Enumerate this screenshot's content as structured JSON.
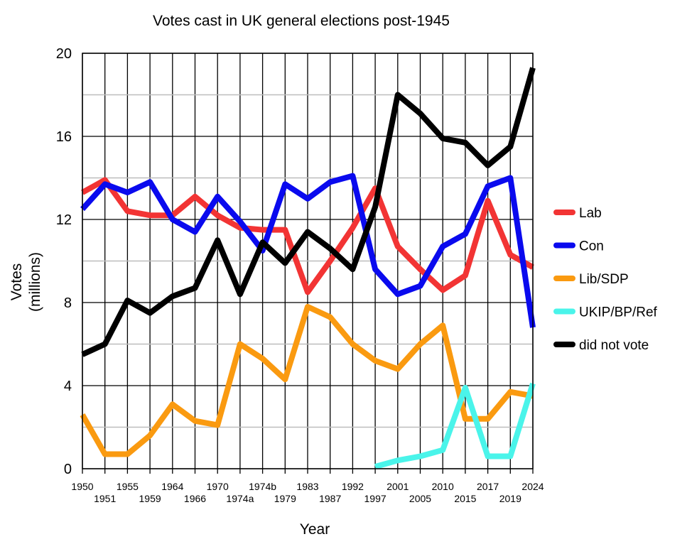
{
  "chart_data": {
    "type": "line",
    "title": "Votes cast in UK general elections post-1945",
    "xlabel": "Year",
    "ylabel": "Votes",
    "ylabel_units": "(millions)",
    "ylim": [
      0,
      20
    ],
    "yticks": [
      0,
      4,
      8,
      12,
      16,
      20
    ],
    "grid": true,
    "legend_position": "right",
    "categories": [
      "1950",
      "1951",
      "1955",
      "1959",
      "1964",
      "1966",
      "1970",
      "1974a",
      "1974b",
      "1979",
      "1983",
      "1987",
      "1992",
      "1997",
      "2001",
      "2005",
      "2010",
      "2015",
      "2017",
      "2019",
      "2024"
    ],
    "series": [
      {
        "name": "Lab",
        "color": "#f23434",
        "values": [
          13.3,
          13.9,
          12.4,
          12.2,
          12.2,
          13.1,
          12.2,
          11.6,
          11.5,
          11.5,
          8.5,
          10.0,
          11.6,
          13.5,
          10.7,
          9.6,
          8.6,
          9.3,
          12.9,
          10.3,
          9.7
        ]
      },
      {
        "name": "Con",
        "color": "#0a0aee",
        "values": [
          12.5,
          13.7,
          13.3,
          13.8,
          12.0,
          11.4,
          13.1,
          11.9,
          10.5,
          13.7,
          13.0,
          13.8,
          14.1,
          9.6,
          8.4,
          8.8,
          10.7,
          11.3,
          13.6,
          14.0,
          6.8
        ]
      },
      {
        "name": "Lib/SDP",
        "color": "#fa9a10",
        "values": [
          2.6,
          0.7,
          0.7,
          1.6,
          3.1,
          2.3,
          2.1,
          6.0,
          5.3,
          4.3,
          7.8,
          7.3,
          6.0,
          5.2,
          4.8,
          6.0,
          6.9,
          2.4,
          2.4,
          3.7,
          3.5
        ]
      },
      {
        "name": "UKIP/BP/Ref",
        "color": "#4af4ea",
        "values": [
          null,
          null,
          null,
          null,
          null,
          null,
          null,
          null,
          null,
          null,
          null,
          null,
          null,
          0.1,
          0.4,
          0.6,
          0.9,
          3.9,
          0.6,
          0.6,
          4.1
        ]
      },
      {
        "name": "did not vote",
        "color": "#000000",
        "values": [
          5.5,
          6.0,
          8.1,
          7.5,
          8.3,
          8.7,
          11.0,
          8.4,
          10.9,
          9.9,
          11.4,
          10.6,
          9.6,
          12.6,
          18.0,
          17.1,
          15.9,
          15.7,
          14.6,
          15.5,
          19.3
        ]
      }
    ]
  }
}
